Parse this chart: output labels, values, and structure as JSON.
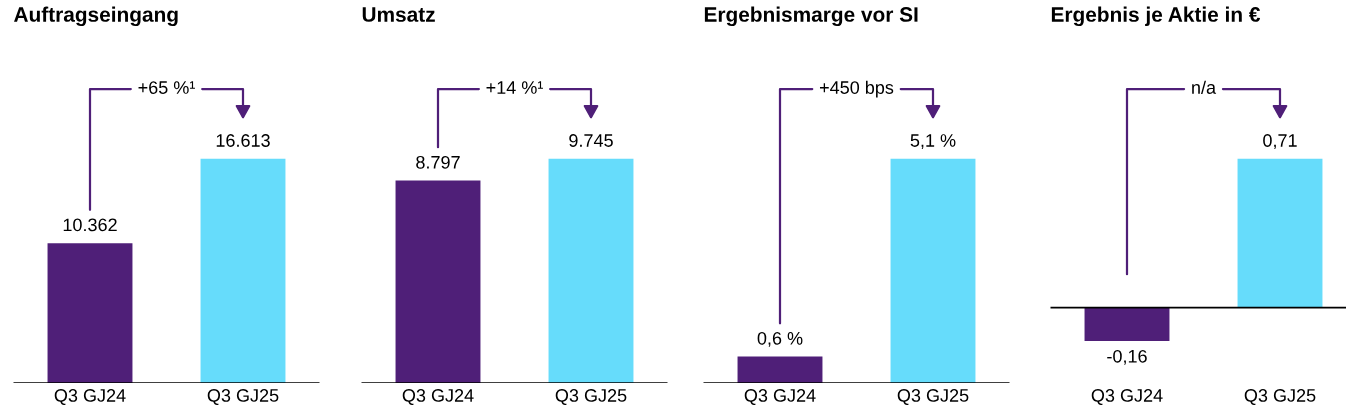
{
  "chart_data": [
    {
      "type": "bar",
      "title": "Auftragseingang",
      "categories": [
        "Q3 GJ24",
        "Q3 GJ25"
      ],
      "values": [
        10362,
        16613
      ],
      "colors": [
        "#4f1f78",
        "#66dcfb"
      ],
      "value_labels": [
        "10.362",
        "16.613"
      ],
      "annotations": [
        "+65 %¹"
      ]
    },
    {
      "type": "bar",
      "title": "Umsatz",
      "categories": [
        "Q3 GJ24",
        "Q3 GJ25"
      ],
      "values": [
        8797,
        9745
      ],
      "colors": [
        "#4f1f78",
        "#66dcfb"
      ],
      "value_labels": [
        "8.797",
        "9.745"
      ],
      "annotations": [
        "+14 %¹"
      ]
    },
    {
      "type": "bar",
      "title": "Ergebnismarge vor SI",
      "categories": [
        "Q3 GJ24",
        "Q3 GJ25"
      ],
      "values": [
        0.6,
        5.1
      ],
      "colors": [
        "#4f1f78",
        "#66dcfb"
      ],
      "value_labels": [
        "0,6 %",
        "5,1 %"
      ],
      "annotations": [
        "+450 bps"
      ]
    },
    {
      "type": "bar",
      "title": "Ergebnis je Aktie in €",
      "categories": [
        "Q3 GJ24",
        "Q3 GJ25"
      ],
      "values": [
        -0.16,
        0.71
      ],
      "colors": [
        "#4f1f78",
        "#66dcfb"
      ],
      "value_labels": [
        "-0,16",
        "0,71"
      ],
      "annotations": [
        "n/a"
      ]
    }
  ]
}
